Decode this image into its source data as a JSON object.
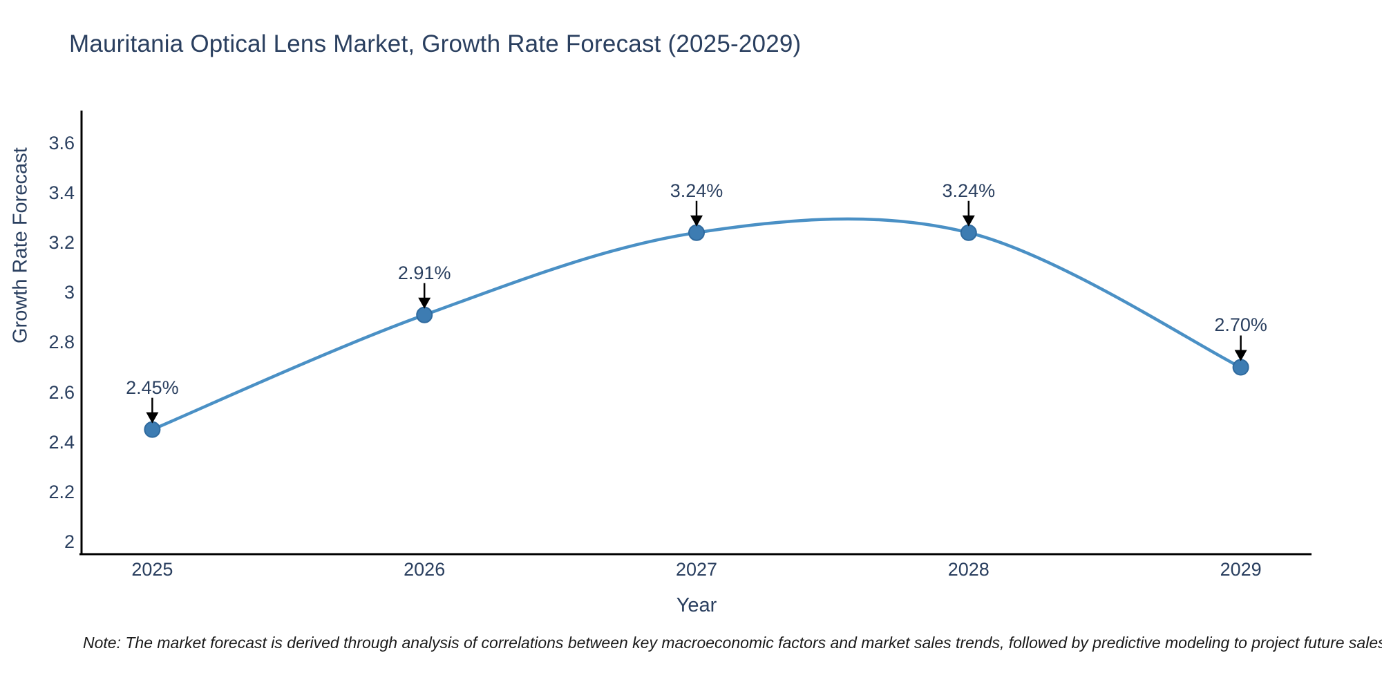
{
  "title": "Mauritania Optical Lens Market, Growth Rate Forecast (2025-2029)",
  "note": "Note: The market forecast is derived through analysis of correlations between key macroeconomic factors and market sales trends, followed by predictive modeling to project future sales",
  "chart_data": {
    "type": "line",
    "line_shape": "spline",
    "title": "Mauritania Optical Lens Market, Growth Rate Forecast (2025-2029)",
    "xlabel": "Year",
    "ylabel": "Growth Rate Forecast",
    "x": [
      2025,
      2026,
      2027,
      2028,
      2029
    ],
    "values": [
      2.45,
      2.91,
      3.24,
      3.24,
      2.7
    ],
    "point_labels": [
      "2.45%",
      "2.91%",
      "3.24%",
      "3.24%",
      "2.70%"
    ],
    "x_tick_labels": [
      "2025",
      "2026",
      "2027",
      "2028",
      "2029"
    ],
    "x_tick_values": [
      2025,
      2026,
      2027,
      2028,
      2029
    ],
    "y_tick_labels": [
      "2",
      "2.2",
      "2.4",
      "2.6",
      "2.8",
      "3",
      "3.2",
      "3.4",
      "3.6"
    ],
    "y_tick_values": [
      2,
      2.2,
      2.4,
      2.6,
      2.8,
      3,
      3.2,
      3.4,
      3.6
    ],
    "xlim": [
      2024.74,
      2029.26
    ],
    "ylim": [
      1.95,
      3.73
    ],
    "grid": false,
    "legend": "none",
    "annotations_have_arrows": true,
    "colors": {
      "line": "#4a90c5",
      "marker_fill": "#3d7cb2",
      "marker_edge": "#2f6a9e",
      "axis_line": "#000000",
      "tick_text": "#2a3f5f",
      "title_text": "#2a3f5f",
      "arrow": "#000000",
      "note_text": "#1a1a1a"
    }
  }
}
